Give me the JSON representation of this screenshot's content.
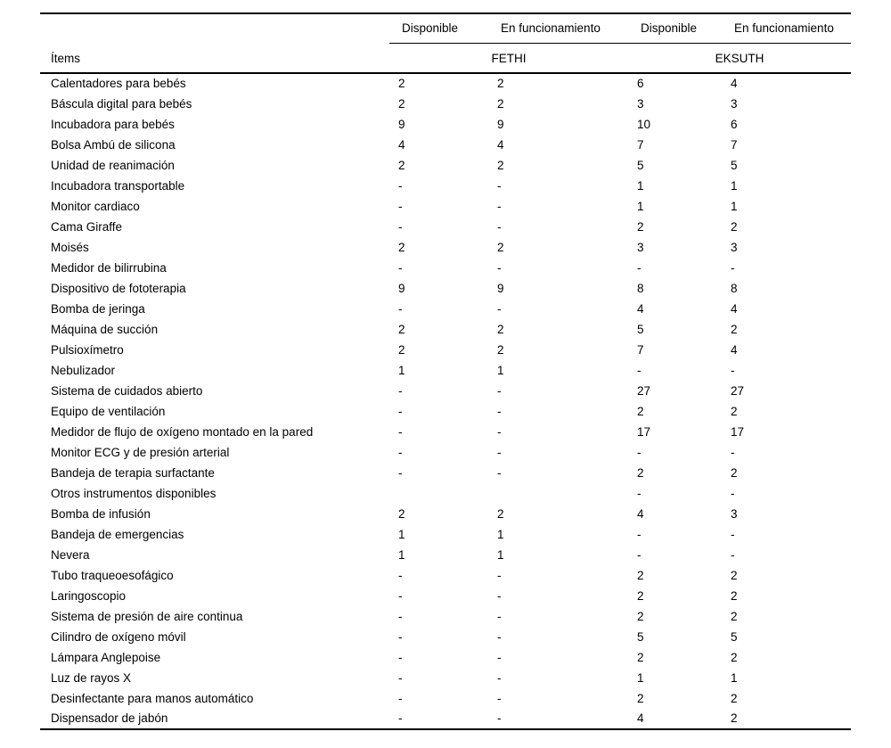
{
  "table": {
    "items_label": "Ítems",
    "sub_headers": [
      "Disponible",
      "En funcionamiento",
      "Disponible",
      "En funcionamiento"
    ],
    "groups": [
      "FETHI",
      "EKSUTH"
    ],
    "rows": [
      {
        "item": "Calentadores para bebés",
        "values": [
          "2",
          "2",
          "6",
          "4"
        ]
      },
      {
        "item": "Báscula digital para bebés",
        "values": [
          "2",
          "2",
          "3",
          "3"
        ]
      },
      {
        "item": "Incubadora para bebés",
        "values": [
          "9",
          "9",
          "10",
          "6"
        ]
      },
      {
        "item": "Bolsa Ambú de silicona",
        "values": [
          "4",
          "4",
          "7",
          "7"
        ]
      },
      {
        "item": "Unidad de reanimación",
        "values": [
          "2",
          "2",
          "5",
          "5"
        ]
      },
      {
        "item": "Incubadora transportable",
        "values": [
          "-",
          "-",
          "1",
          "1"
        ]
      },
      {
        "item": "Monitor cardiaco",
        "values": [
          "-",
          "-",
          "1",
          "1"
        ]
      },
      {
        "item": "Cama Giraffe",
        "values": [
          "-",
          "-",
          "2",
          "2"
        ]
      },
      {
        "item": "Moisés",
        "values": [
          "2",
          "2",
          "3",
          "3"
        ]
      },
      {
        "item": "Medidor de bilirrubina",
        "values": [
          "-",
          "-",
          "-",
          "-"
        ]
      },
      {
        "item": "Dispositivo de fototerapia",
        "values": [
          "9",
          "9",
          "8",
          "8"
        ]
      },
      {
        "item": "Bomba de jeringa",
        "values": [
          "-",
          "-",
          "4",
          "4"
        ]
      },
      {
        "item": "Máquina de succión",
        "values": [
          "2",
          "2",
          "5",
          "2"
        ]
      },
      {
        "item": "Pulsioxímetro",
        "values": [
          "2",
          "2",
          "7",
          "4"
        ]
      },
      {
        "item": "Nebulizador",
        "values": [
          "1",
          "1",
          "-",
          "-"
        ]
      },
      {
        "item": "Sistema de cuidados abierto",
        "values": [
          "-",
          "-",
          "27",
          "27"
        ]
      },
      {
        "item": "Equipo de ventilación",
        "values": [
          "-",
          "-",
          "2",
          "2"
        ]
      },
      {
        "item": "Medidor de flujo de oxígeno montado en la pared",
        "values": [
          "-",
          "-",
          "17",
          "17"
        ]
      },
      {
        "item": "Monitor ECG y de presión arterial",
        "values": [
          "-",
          "-",
          "-",
          "-"
        ]
      },
      {
        "item": "Bandeja de terapia surfactante",
        "values": [
          "-",
          "-",
          "2",
          "2"
        ]
      },
      {
        "item": "Otros instrumentos disponibles",
        "values": [
          "",
          "",
          "-",
          "-"
        ]
      },
      {
        "item": "Bomba de infusión",
        "values": [
          "2",
          "2",
          "4",
          "3"
        ]
      },
      {
        "item": "Bandeja de emergencias",
        "values": [
          "1",
          "1",
          "-",
          "-"
        ]
      },
      {
        "item": "Nevera",
        "values": [
          "1",
          "1",
          "-",
          "-"
        ]
      },
      {
        "item": "Tubo traqueoesofágico",
        "values": [
          "-",
          "-",
          "2",
          "2"
        ]
      },
      {
        "item": "Laringoscopio",
        "values": [
          "-",
          "-",
          "2",
          "2"
        ]
      },
      {
        "item": "Sistema de presión de aire continua",
        "values": [
          "-",
          "-",
          "2",
          "2"
        ]
      },
      {
        "item": "Cilindro de oxígeno móvil",
        "values": [
          "-",
          "-",
          "5",
          "5"
        ]
      },
      {
        "item": "Lámpara Anglepoise",
        "values": [
          "-",
          "-",
          "2",
          "2"
        ]
      },
      {
        "item": "Luz de rayos X",
        "values": [
          "-",
          "-",
          "1",
          "1"
        ]
      },
      {
        "item": "Desinfectante para manos automático",
        "values": [
          "-",
          "-",
          "2",
          "2"
        ]
      },
      {
        "item": "Dispensador de jabón",
        "values": [
          "-",
          "-",
          "4",
          "2"
        ]
      }
    ]
  }
}
